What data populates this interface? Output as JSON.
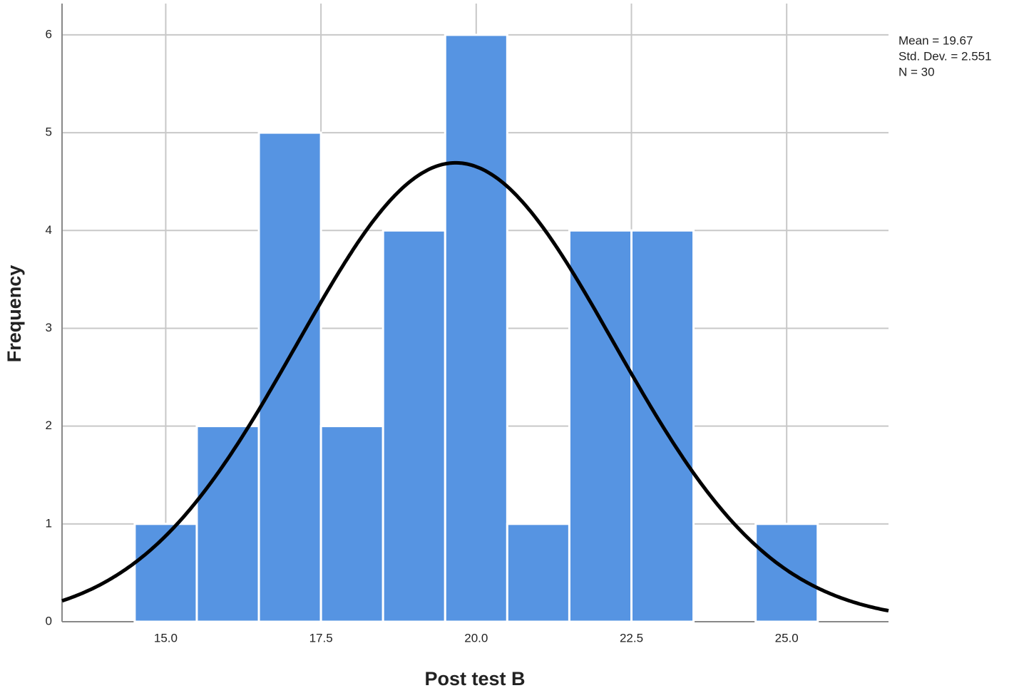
{
  "chart_data": {
    "type": "histogram",
    "x_label": "Post test B",
    "y_label": "Frequency",
    "bins": [
      14.5,
      15.5,
      16.5,
      17.5,
      18.5,
      19.5,
      20.5,
      21.5,
      22.5,
      23.5,
      24.5,
      25.5
    ],
    "values": [
      1,
      2,
      5,
      2,
      4,
      6,
      1,
      4,
      4,
      0,
      1
    ],
    "color": "#5694e2",
    "xlim": [
      13.33,
      26.64
    ],
    "ylim": [
      0,
      6.32
    ],
    "xticks": [
      {
        "value": 15,
        "label": "15.0"
      },
      {
        "value": 17.5,
        "label": "17.5"
      },
      {
        "value": 20,
        "label": "20.0"
      },
      {
        "value": 22.5,
        "label": "22.5"
      },
      {
        "value": 25,
        "label": "25.0"
      }
    ],
    "yticks": [
      0,
      1,
      2,
      3,
      4,
      5,
      6
    ],
    "grid": true,
    "curve": {
      "mean": 19.67,
      "std_dev": 2.551,
      "n": 30,
      "color": "#000000"
    },
    "annotations": [
      "Mean = 19.67",
      "Std. Dev. = 2.551",
      "N = 30"
    ]
  }
}
